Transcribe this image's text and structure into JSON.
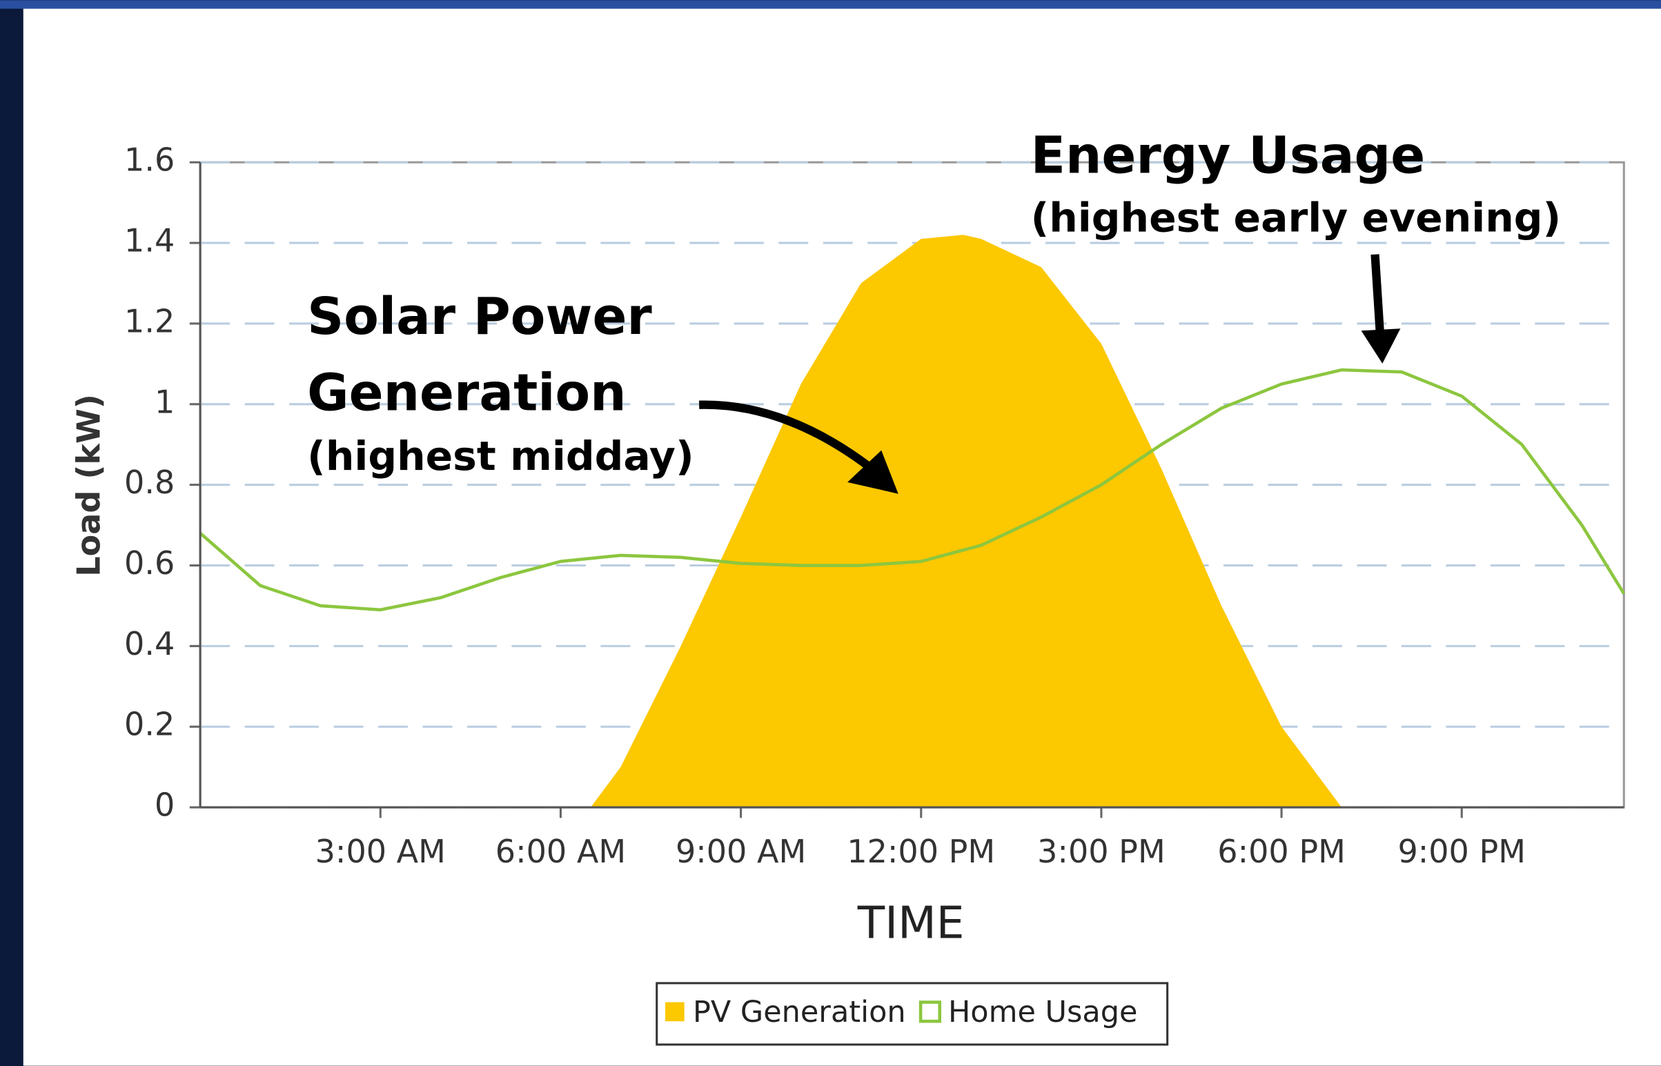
{
  "chart_data": {
    "type": "area-line",
    "y_label": "Load (kW)",
    "x_label": "TIME",
    "xlim": [
      0,
      23.7
    ],
    "xticks": [
      {
        "value": 3,
        "label": "3:00 AM"
      },
      {
        "value": 6,
        "label": "6:00 AM"
      },
      {
        "value": 9,
        "label": "9:00 AM"
      },
      {
        "value": 12,
        "label": "12:00 PM"
      },
      {
        "value": 15,
        "label": "3:00 PM"
      },
      {
        "value": 18,
        "label": "6:00 PM"
      },
      {
        "value": 21,
        "label": "9:00 PM"
      }
    ],
    "ylim": [
      0,
      1.6
    ],
    "yticks": [
      0,
      0.2,
      0.4,
      0.6,
      0.8,
      1,
      1.2,
      1.4,
      1.6
    ],
    "grid": true,
    "series": [
      {
        "name": "PV Generation",
        "color": "#fcc800",
        "kind": "area",
        "x": [
          0,
          6,
          6.5,
          7,
          8,
          9,
          10,
          11,
          12,
          12.7,
          13,
          14,
          15,
          16,
          17,
          18,
          19,
          23.7
        ],
        "values": [
          0,
          0,
          0,
          0.1,
          0.4,
          0.72,
          1.05,
          1.3,
          1.41,
          1.42,
          1.41,
          1.34,
          1.15,
          0.84,
          0.5,
          0.2,
          0,
          0
        ]
      },
      {
        "name": "Home Usage",
        "color": "#8cc63f",
        "kind": "line",
        "x": [
          0,
          1,
          2,
          3,
          4,
          5,
          6,
          7,
          8,
          9,
          10,
          11,
          12,
          13,
          14,
          15,
          16,
          17,
          18,
          19,
          20,
          21,
          22,
          23,
          23.7
        ],
        "values": [
          0.68,
          0.55,
          0.5,
          0.49,
          0.52,
          0.57,
          0.61,
          0.625,
          0.62,
          0.605,
          0.6,
          0.6,
          0.61,
          0.65,
          0.72,
          0.8,
          0.9,
          0.99,
          1.05,
          1.085,
          1.08,
          1.02,
          0.9,
          0.7,
          0.53
        ]
      }
    ],
    "annotations": [
      "Solar Power",
      "Generation",
      "(highest midday)",
      "Energy Usage",
      "(highest early evening)"
    ]
  }
}
